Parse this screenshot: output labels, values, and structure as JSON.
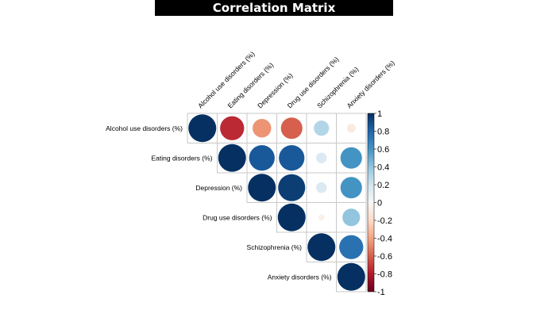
{
  "page": {
    "title": "Correlation Matrix"
  },
  "chart_data": {
    "type": "heatmap",
    "subtype": "correlation-circle-upper",
    "variables": [
      "Alcohol use disorders (%)",
      "Eating disorders (%)",
      "Depression (%)",
      "Drug use disorders (%)",
      "Schizophrenia (%)",
      "Anxiety disorders (%)"
    ],
    "matrix": [
      [
        1.0,
        -0.75,
        -0.45,
        -0.6,
        0.3,
        -0.1
      ],
      [
        -0.75,
        1.0,
        0.85,
        0.85,
        0.15,
        0.6
      ],
      [
        -0.45,
        0.85,
        1.0,
        0.95,
        0.15,
        0.6
      ],
      [
        -0.6,
        0.85,
        0.95,
        1.0,
        -0.05,
        0.4
      ],
      [
        0.3,
        0.15,
        0.15,
        -0.05,
        1.0,
        0.75
      ],
      [
        -0.1,
        0.6,
        0.6,
        0.4,
        0.75,
        1.0
      ]
    ],
    "colorbar": {
      "range": [
        -1,
        1
      ],
      "ticks": [
        "1",
        "0.8",
        "0.6",
        "0.4",
        "0.2",
        "0",
        "-0.2",
        "-0.4",
        "-0.6",
        "-0.8",
        "-1"
      ],
      "colors": {
        "negative": "#67001F",
        "neutral": "#F7F7F7",
        "positive": "#053061"
      }
    },
    "grid": true
  }
}
